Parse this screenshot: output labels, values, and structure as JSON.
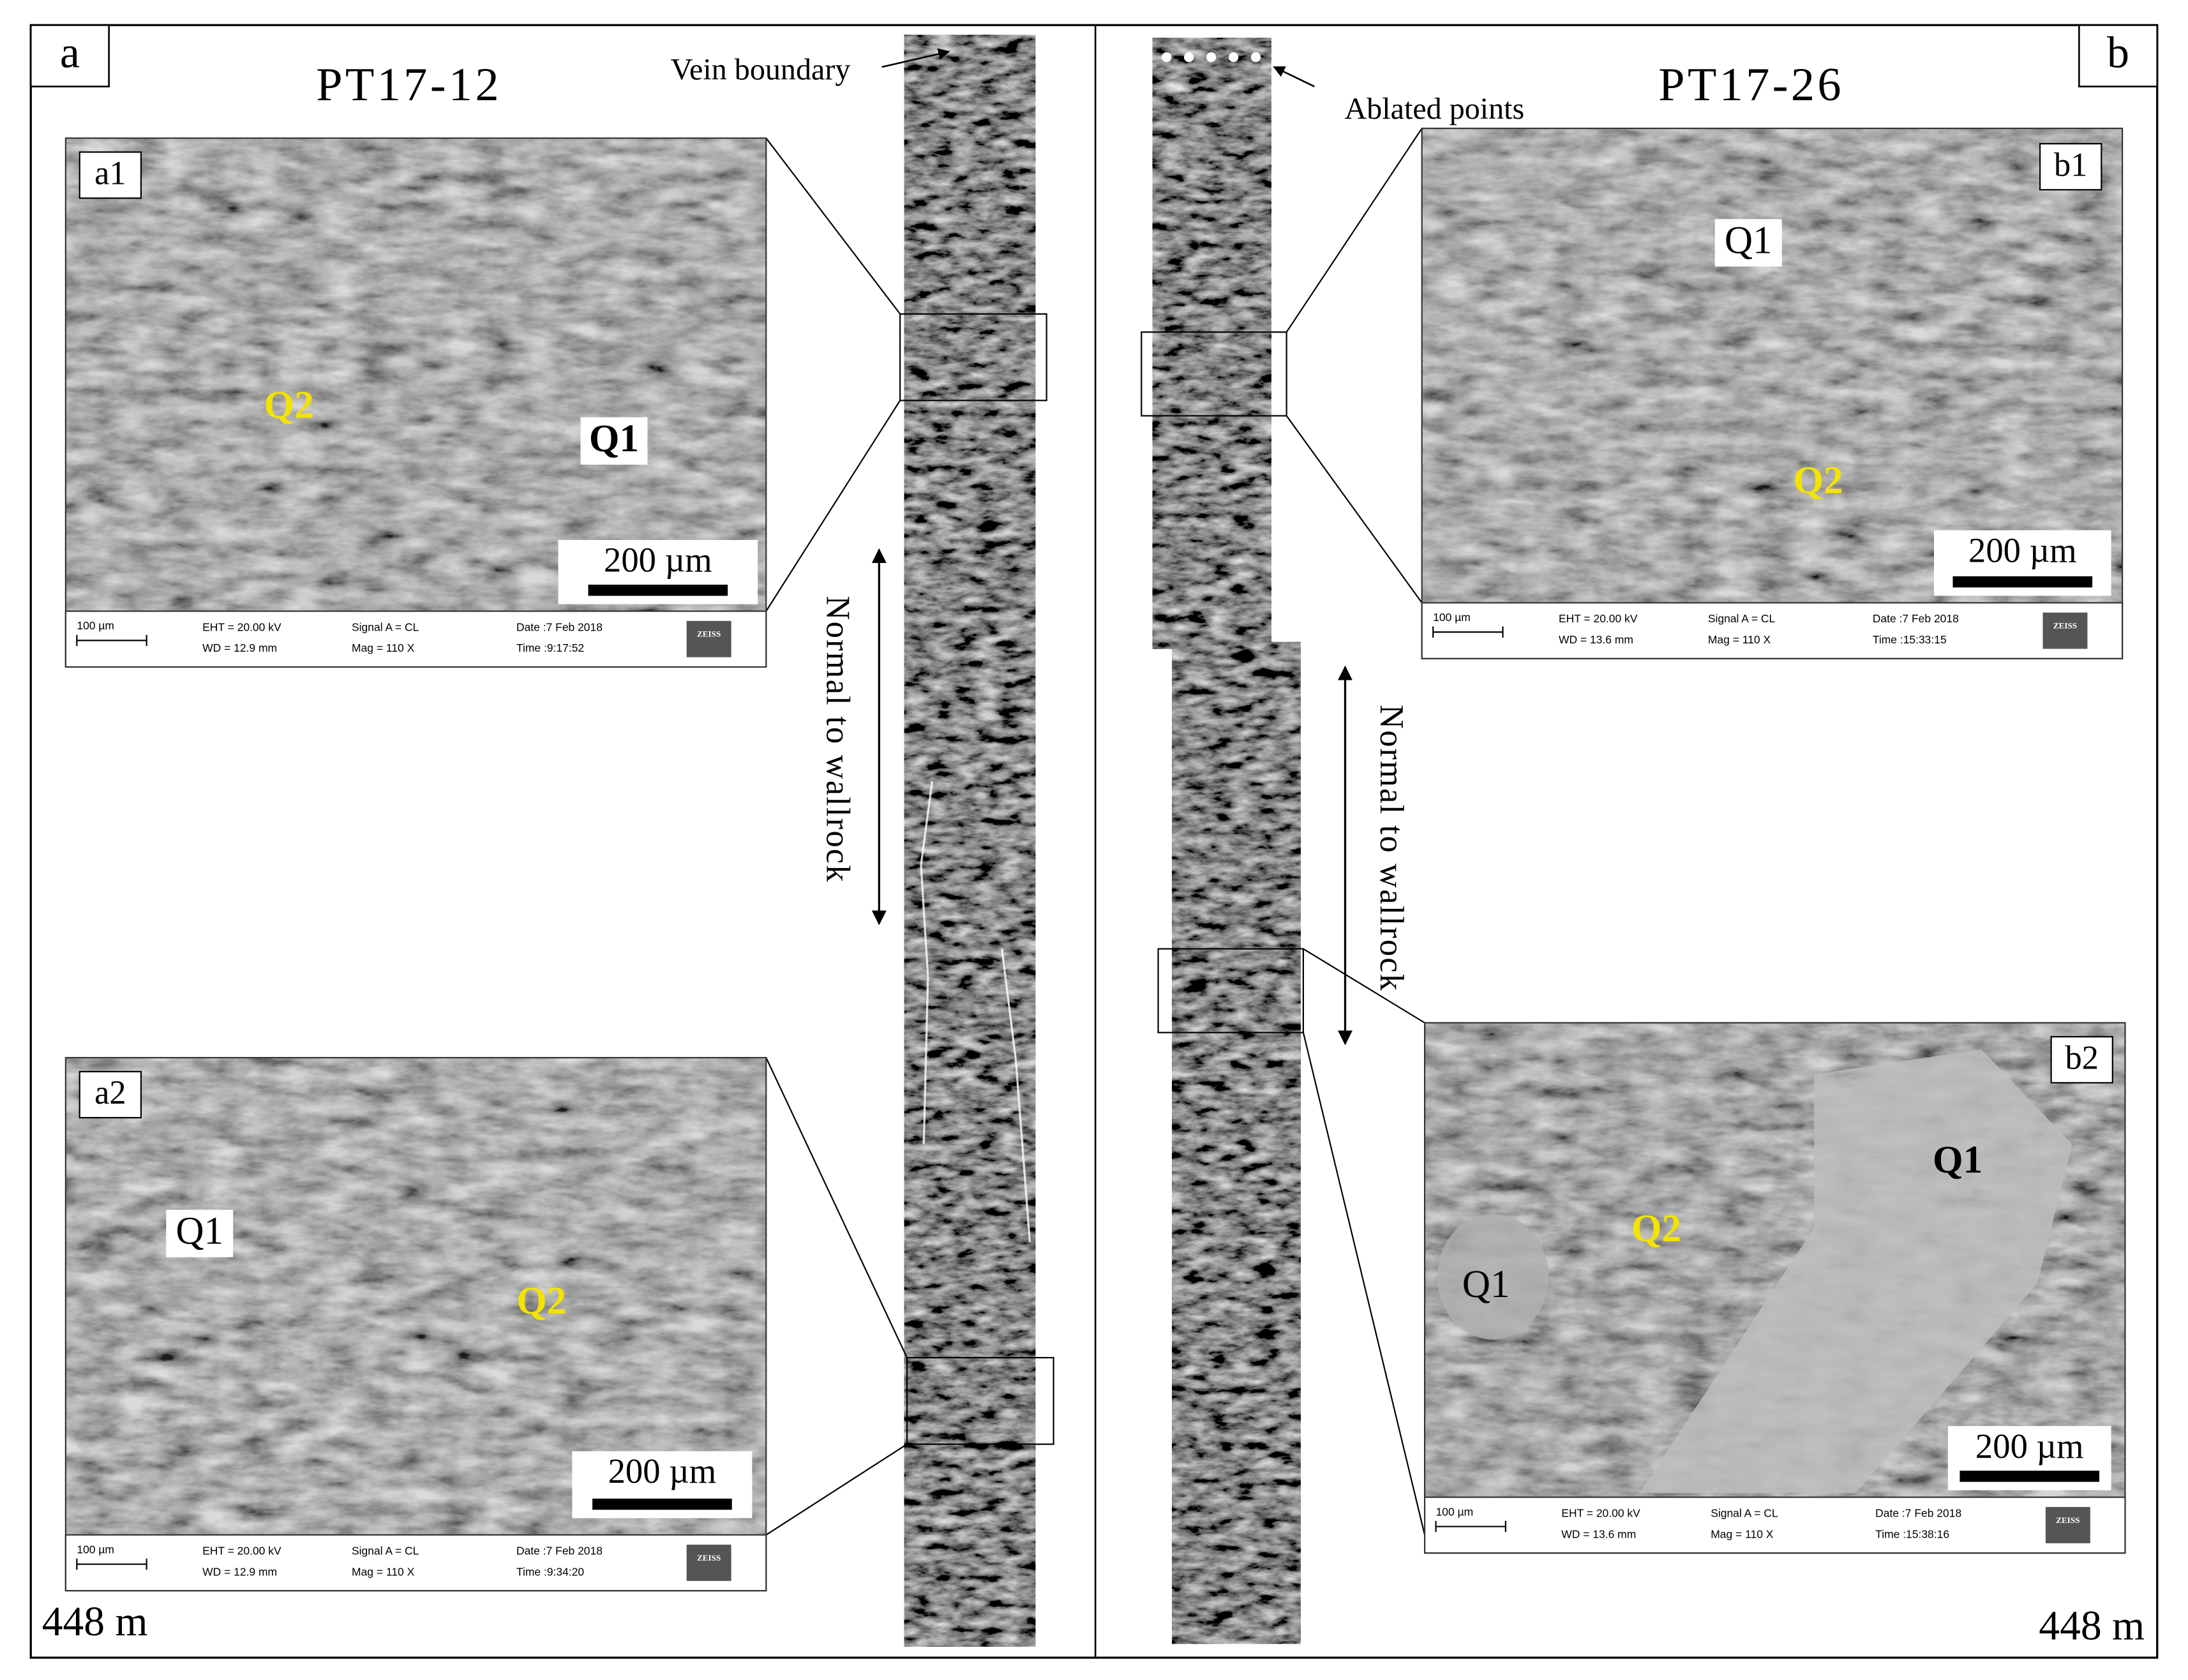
{
  "panels": [
    {
      "label": "a",
      "sample": "PT17-12",
      "annotation": "Vein boundary",
      "axis_label": "Normal to wallrock",
      "depth": "448  m",
      "insets": [
        {
          "label": "a1",
          "phases": [
            "Q2",
            "Q1"
          ],
          "scale": "200 µm",
          "info": {
            "scale": "100 µm",
            "eht": "EHT = 20.00 kV",
            "wd": "WD = 12.9 mm",
            "signal": "Signal A = CL",
            "mag": "Mag =   110 X",
            "date": "Date :7 Feb 2018",
            "time": "Time :9:17:52",
            "brand": "ZEISS"
          }
        },
        {
          "label": "a2",
          "phases": [
            "Q1",
            "Q2"
          ],
          "scale": "200 µm",
          "info": {
            "scale": "100 µm",
            "eht": "EHT = 20.00 kV",
            "wd": "WD = 12.9 mm",
            "signal": "Signal A = CL",
            "mag": "Mag =   110 X",
            "date": "Date :7 Feb 2018",
            "time": "Time :9:34:20",
            "brand": "ZEISS"
          }
        }
      ]
    },
    {
      "label": "b",
      "sample": "PT17-26",
      "annotation": "Ablated points",
      "axis_label": "Normal to wallrock",
      "depth": "448  m",
      "insets": [
        {
          "label": "b1",
          "phases": [
            "Q1",
            "Q2"
          ],
          "scale": "200 µm",
          "info": {
            "scale": "100 µm",
            "eht": "EHT = 20.00 kV",
            "wd": "WD = 13.6 mm",
            "signal": "Signal A = CL",
            "mag": "Mag =   110 X",
            "date": "Date :7 Feb 2018",
            "time": "Time :15:33:15",
            "brand": "ZEISS"
          }
        },
        {
          "label": "b2",
          "phases": [
            "Q1",
            "Q2",
            "Q1"
          ],
          "scale": "200 µm",
          "info": {
            "scale": "100 µm",
            "eht": "EHT = 20.00 kV",
            "wd": "WD = 13.6 mm",
            "signal": "Signal A = CL",
            "mag": "Mag =   110 X",
            "date": "Date :7 Feb 2018",
            "time": "Time :15:38:16",
            "brand": "ZEISS"
          }
        }
      ]
    }
  ]
}
